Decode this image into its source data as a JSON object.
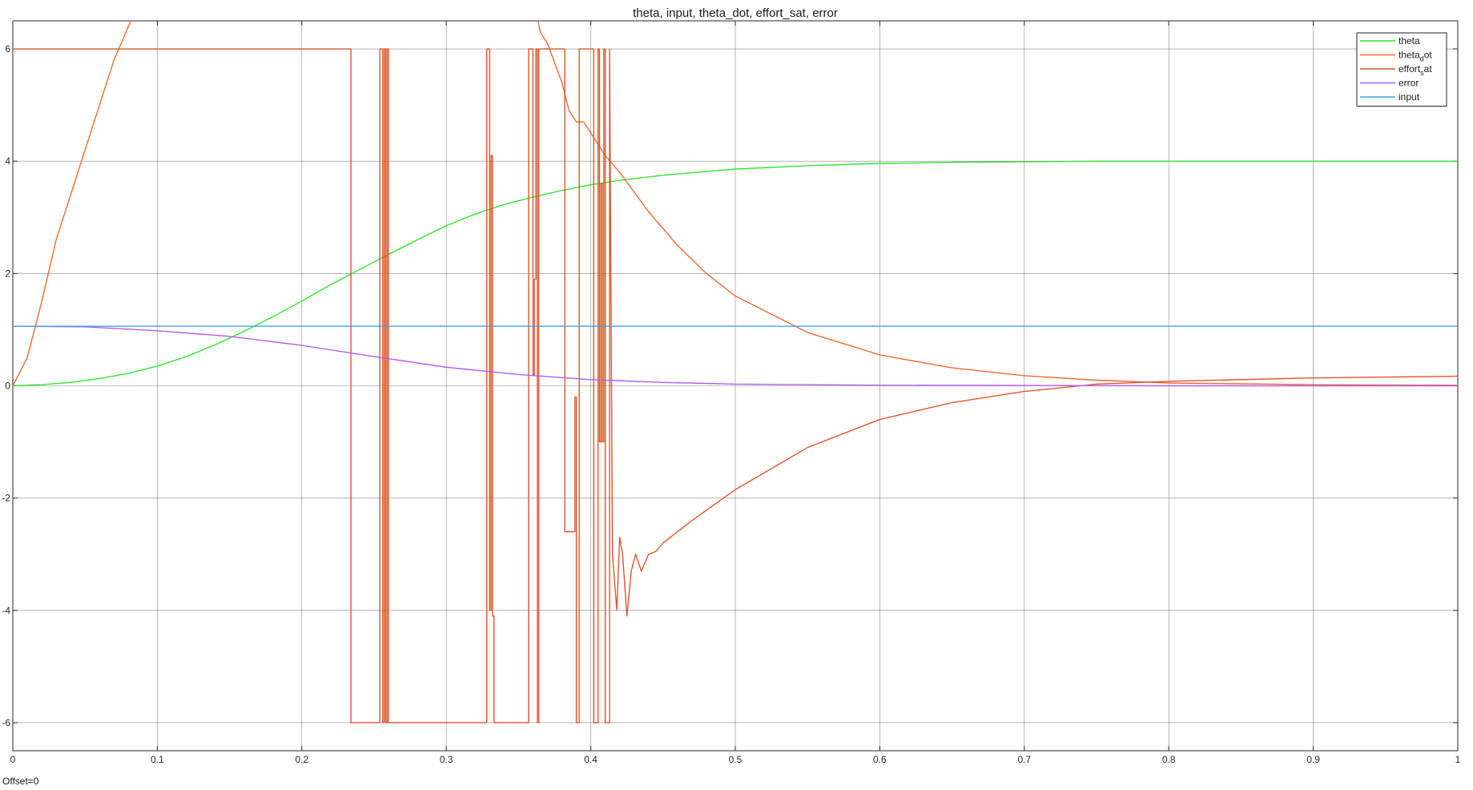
{
  "scope": {
    "offset_label": "Offset=0"
  },
  "chart_data": {
    "type": "line",
    "title": "theta, input, theta_dot, effort_sat, error",
    "xlabel": "",
    "ylabel": "",
    "xlim": [
      0,
      1
    ],
    "ylim": [
      -6.5,
      6.5
    ],
    "x_ticks": [
      0,
      0.1,
      0.2,
      0.3,
      0.4,
      0.5,
      0.6,
      0.7,
      0.8,
      0.9,
      1
    ],
    "x_tick_labels": [
      "0",
      "0.1",
      "0.2",
      "0.3",
      "0.4",
      "0.5",
      "0.6",
      "0.7",
      "0.8",
      "0.9",
      "1"
    ],
    "y_ticks": [
      -6,
      -4,
      -2,
      0,
      2,
      4,
      6
    ],
    "y_tick_labels": [
      "-6",
      "-4",
      "-2",
      "0",
      "2",
      "4",
      "6"
    ],
    "grid": true,
    "legend_position": "top-right",
    "legend": [
      {
        "main": "theta",
        "sub": "",
        "tail": "",
        "color": "#2ee62e"
      },
      {
        "main": "theta",
        "sub": "d",
        "tail": "ot",
        "color": "#f06a30"
      },
      {
        "main": "effort",
        "sub": "s",
        "tail": "at",
        "color": "#e0542a"
      },
      {
        "main": "error",
        "sub": "",
        "tail": "",
        "color": "#b35cf0"
      },
      {
        "main": "input",
        "sub": "",
        "tail": "",
        "color": "#3aa6e8"
      }
    ],
    "series": [
      {
        "name": "theta",
        "color": "#2ee62e",
        "x": [
          0,
          0.02,
          0.04,
          0.06,
          0.08,
          0.1,
          0.12,
          0.14,
          0.16,
          0.18,
          0.2,
          0.22,
          0.24,
          0.26,
          0.28,
          0.3,
          0.32,
          0.34,
          0.36,
          0.38,
          0.4,
          0.42,
          0.45,
          0.5,
          0.55,
          0.6,
          0.65,
          0.7,
          0.75,
          0.8,
          0.9,
          1.0
        ],
        "y": [
          0,
          0.02,
          0.06,
          0.13,
          0.22,
          0.35,
          0.52,
          0.73,
          0.97,
          1.23,
          1.51,
          1.8,
          2.07,
          2.34,
          2.6,
          2.85,
          3.06,
          3.23,
          3.36,
          3.48,
          3.58,
          3.66,
          3.75,
          3.86,
          3.92,
          3.96,
          3.98,
          3.99,
          4.0,
          4.0,
          4.0,
          4.0
        ]
      },
      {
        "name": "theta_dot",
        "color": "#f06a30",
        "x": [
          0,
          0.01,
          0.02,
          0.03,
          0.05,
          0.07,
          0.09,
          0.36,
          0.365,
          0.37,
          0.38,
          0.385,
          0.39,
          0.395,
          0.4,
          0.41,
          0.42,
          0.44,
          0.46,
          0.48,
          0.5,
          0.55,
          0.6,
          0.65,
          0.7,
          0.75,
          0.8,
          0.9,
          1.0
        ],
        "y": [
          0,
          0.5,
          1.5,
          2.6,
          4.2,
          5.8,
          7.0,
          7.0,
          6.3,
          6.1,
          5.4,
          4.9,
          4.7,
          4.7,
          4.5,
          4.1,
          3.8,
          3.1,
          2.5,
          2.0,
          1.6,
          0.95,
          0.55,
          0.32,
          0.18,
          0.1,
          0.05,
          0.02,
          0.01
        ]
      },
      {
        "name": "effort_sat",
        "color": "#e0542a",
        "x": [
          0,
          0.234,
          0.234,
          0.254,
          0.254,
          0.256,
          0.256,
          0.257,
          0.257,
          0.258,
          0.258,
          0.259,
          0.259,
          0.26,
          0.26,
          0.328,
          0.328,
          0.33,
          0.33,
          0.331,
          0.331,
          0.332,
          0.332,
          0.333,
          0.333,
          0.357,
          0.357,
          0.36,
          0.36,
          0.361,
          0.361,
          0.362,
          0.362,
          0.363,
          0.363,
          0.364,
          0.364,
          0.382,
          0.382,
          0.389,
          0.389,
          0.39,
          0.39,
          0.392,
          0.392,
          0.402,
          0.402,
          0.405,
          0.405,
          0.406,
          0.406,
          0.407,
          0.407,
          0.408,
          0.408,
          0.409,
          0.409,
          0.41,
          0.41,
          0.413,
          0.413,
          0.415,
          0.418,
          0.42,
          0.422,
          0.425,
          0.428,
          0.431,
          0.435,
          0.44,
          0.445,
          0.45,
          0.47,
          0.5,
          0.55,
          0.6,
          0.65,
          0.7,
          0.75,
          0.8,
          0.9,
          1.0
        ],
        "y": [
          6,
          6,
          -6,
          -6,
          6,
          6,
          -6,
          -6,
          6,
          6,
          -6,
          -6,
          6,
          6,
          -6,
          -6,
          6,
          6,
          -4,
          -4,
          4.1,
          4.1,
          -4.1,
          -4.1,
          -6,
          -6,
          6,
          6,
          0.2,
          0.2,
          1.9,
          1.9,
          6,
          6,
          -6,
          -6,
          6,
          6,
          -2.6,
          -2.6,
          -0.2,
          -0.2,
          -6,
          -6,
          6,
          6,
          -6,
          -6,
          6,
          6,
          -1.0,
          -1.0,
          3.6,
          3.6,
          -1.0,
          -1.0,
          6,
          6,
          -6,
          -6,
          6,
          -3.0,
          -4.0,
          -2.7,
          -3.0,
          -4.1,
          -3.3,
          -3.0,
          -3.3,
          -3.0,
          -2.95,
          -2.8,
          -2.4,
          -1.85,
          -1.1,
          -0.6,
          -0.3,
          -0.1,
          0.03,
          0.08,
          0.14,
          0.17
        ]
      },
      {
        "name": "error",
        "color": "#b35cf0",
        "x": [
          0,
          0.05,
          0.1,
          0.15,
          0.2,
          0.25,
          0.3,
          0.35,
          0.4,
          0.45,
          0.5,
          0.55,
          0.6,
          0.7,
          0.8,
          0.9,
          1.0
        ],
        "y": [
          1.06,
          1.05,
          0.98,
          0.88,
          0.72,
          0.52,
          0.33,
          0.2,
          0.11,
          0.06,
          0.03,
          0.02,
          0.01,
          0.005,
          0.0,
          0.0,
          0.0
        ]
      },
      {
        "name": "input",
        "color": "#3aa6e8",
        "x": [
          0,
          1
        ],
        "y": [
          1.06,
          1.06
        ]
      }
    ]
  }
}
